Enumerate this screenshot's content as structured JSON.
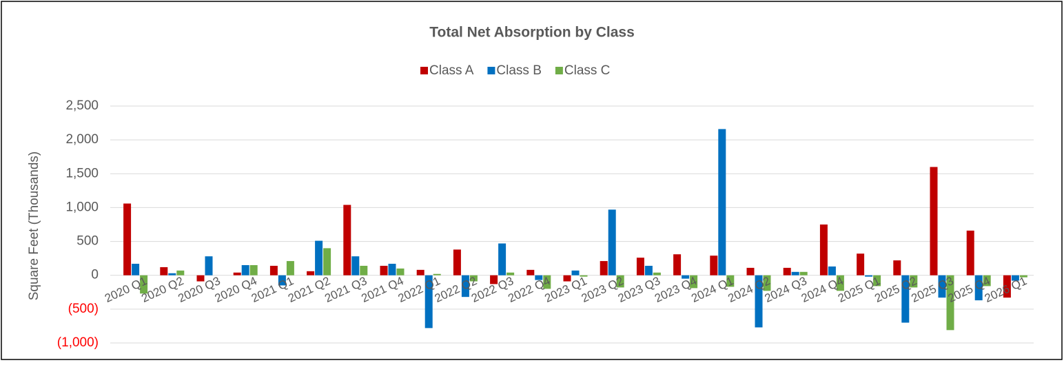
{
  "chart_data": {
    "type": "bar",
    "title": "Total Net Absorption by Class",
    "y_axis_label": "Square Feet (Thousands)",
    "categories": [
      "2020 Q1",
      "2020 Q2",
      "2020 Q3",
      "2020 Q4",
      "2021 Q1",
      "2021 Q2",
      "2021 Q3",
      "2021 Q4",
      "2022 Q1",
      "2022 Q2",
      "2022 Q3",
      "2022 Q4",
      "2023 Q1",
      "2023 Q2",
      "2023 Q3",
      "2023 Q4",
      "2024 Q1",
      "2024 Q2",
      "2024 Q3",
      "2024 Q4",
      "2025 Q1",
      "2025 Q2",
      "2025 Q3",
      "2025 Q4",
      "2026 Q1"
    ],
    "series": [
      {
        "name": "Class A",
        "color": "#c00000",
        "values": [
          1060,
          120,
          -90,
          40,
          140,
          60,
          1040,
          140,
          80,
          380,
          -130,
          80,
          -90,
          210,
          260,
          310,
          290,
          110,
          110,
          750,
          320,
          220,
          1600,
          660,
          -330
        ]
      },
      {
        "name": "Class B",
        "color": "#0070c0",
        "values": [
          170,
          30,
          280,
          150,
          -150,
          510,
          280,
          170,
          -780,
          -320,
          470,
          -70,
          70,
          970,
          140,
          -50,
          2160,
          -770,
          50,
          130,
          -20,
          -700,
          -330,
          -370,
          -80
        ]
      },
      {
        "name": "Class C",
        "color": "#70ad47",
        "values": [
          -270,
          70,
          0,
          150,
          210,
          400,
          140,
          100,
          20,
          -90,
          40,
          -200,
          -20,
          -180,
          40,
          -190,
          -170,
          -230,
          50,
          -230,
          -160,
          -180,
          -810,
          -160,
          -30
        ]
      }
    ],
    "ylim": [
      -1000,
      2500
    ],
    "yticks": [
      {
        "value": -1000,
        "label": "(1,000)"
      },
      {
        "value": -500,
        "label": "(500)"
      },
      0,
      500,
      {
        "value": 1000,
        "label": "1,000"
      },
      {
        "value": 1500,
        "label": "1,500"
      },
      {
        "value": 2000,
        "label": "2,000"
      },
      {
        "value": 2500,
        "label": "2,500"
      }
    ],
    "negative_tick_color": "#ff0000",
    "grid": true,
    "legend": "top"
  }
}
